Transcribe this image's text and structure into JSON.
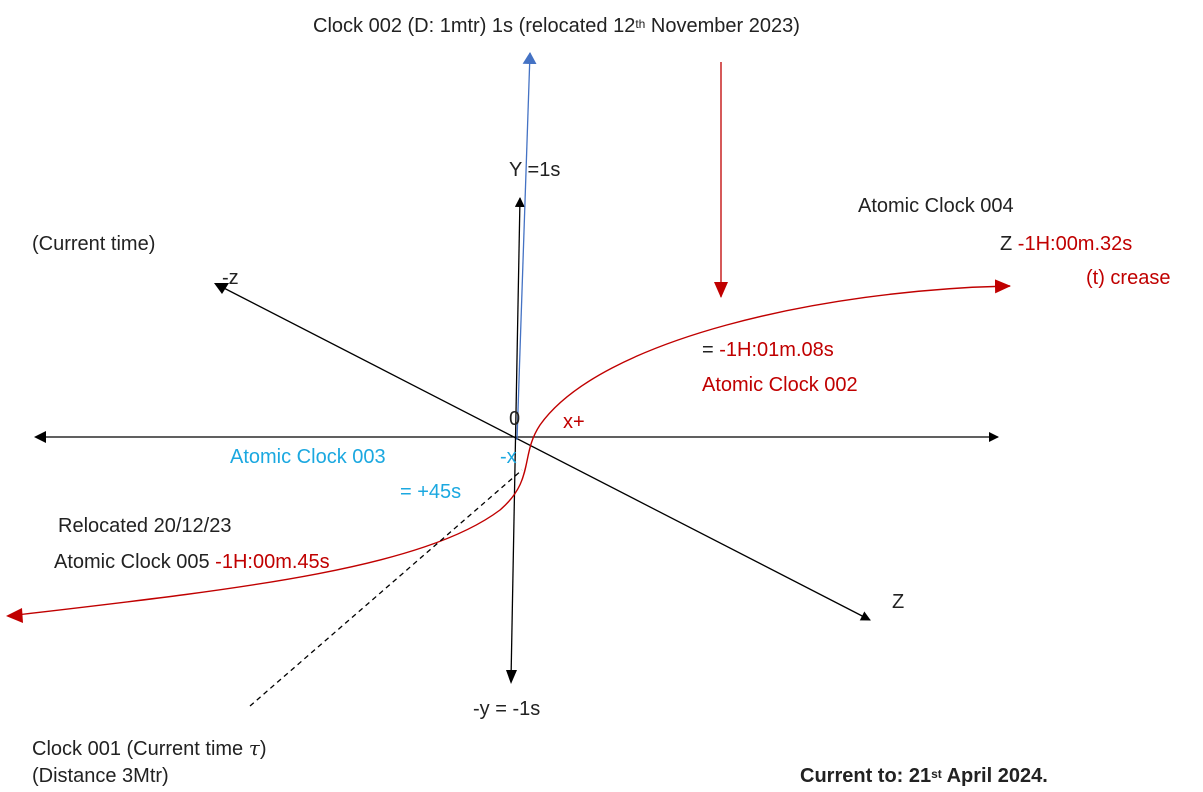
{
  "colors": {
    "axis": "#000000",
    "curve": "#c00000",
    "blue_arrow": "#4472c4",
    "red_text": "#c00000",
    "cyan_text": "#1ba8e0"
  },
  "labels": {
    "clock002_title_pre": "Clock 002 (D: 1mtr) 1s (relocated 12",
    "clock002_title_sup": "th",
    "clock002_title_post": " November 2023)",
    "y_axis": "Y =1s",
    "atomic004": "Atomic Clock 004",
    "z_prefix": "Z ",
    "z_value": "-1H:00m.32s",
    "t_crease": "(t) crease",
    "current_time": "(Current time)",
    "neg_z": "-z",
    "eq_prefix": "= ",
    "atomic002_value": "-1H:01m.08s",
    "atomic002": "Atomic Clock 002",
    "origin": "0",
    "x_plus": "x+",
    "atomic003": "Atomic Clock 003",
    "neg_x": "-x",
    "plus45": "= +45s",
    "relocated": "Relocated 20/12/23",
    "atomic005": "Atomic Clock 005 ",
    "atomic005_value": "-1H:00m.45s",
    "z_axis": "Z",
    "neg_y": "-y = -1s",
    "clock001_pre": "Clock 001 (Current time ",
    "clock001_tau": "τ",
    "clock001_post": ")",
    "distance": "(Distance 3Mtr)",
    "current_to_pre": "Current to: 21",
    "current_to_sup": "st",
    "current_to_post": " April 2024."
  }
}
